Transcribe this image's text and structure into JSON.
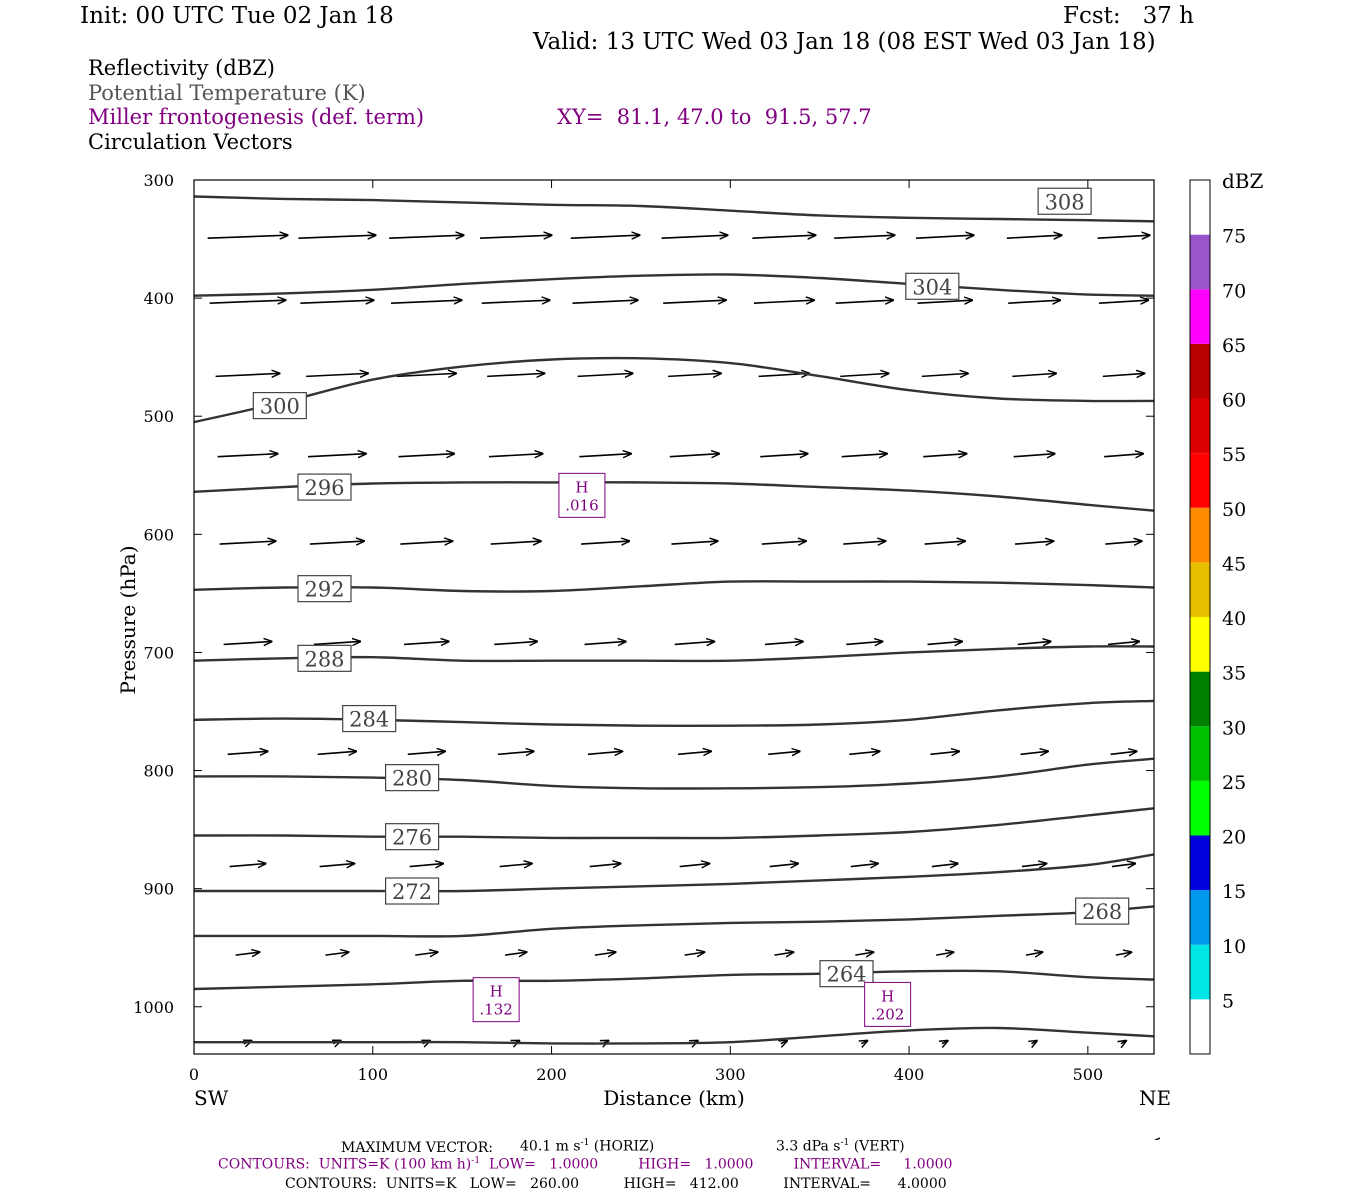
{
  "header": {
    "init": "Init: 00 UTC Tue 02 Jan 18",
    "fcst": "Fcst:   37 h",
    "valid": "Valid: 13 UTC Wed 03 Jan 18 (08 EST Wed 03 Jan 18)"
  },
  "fields": {
    "reflectivity": "Reflectivity (dBZ)",
    "theta": "Potential Temperature (K)",
    "frontogenesis": "Miller frontogenesis (def. term)",
    "xy": "XY=  81.1, 47.0 to  91.5, 57.7",
    "vectors": "Circulation Vectors"
  },
  "colors": {
    "frame": "#000000",
    "contour": "#333333",
    "frontogenesis": "#800080"
  },
  "chart_data": {
    "type": "line",
    "xlabel": "Distance (km)",
    "ylabel": "Pressure (hPa)",
    "xlim": [
      0,
      537
    ],
    "ylim": [
      1040,
      300
    ],
    "y_scale": "linear-pressure",
    "x_ticks": [
      "0",
      "100",
      "200",
      "300",
      "400",
      "500"
    ],
    "x_tick_values": [
      0,
      100,
      200,
      300,
      400,
      500
    ],
    "y_ticks": [
      "300",
      "400",
      "500",
      "600",
      "700",
      "800",
      "900",
      "1000"
    ],
    "y_tick_values": [
      300,
      400,
      500,
      600,
      700,
      800,
      900,
      1000
    ],
    "left_end_label": "SW",
    "right_end_label": "NE",
    "x": [
      0,
      50,
      100,
      150,
      200,
      250,
      300,
      350,
      400,
      450,
      500,
      537
    ],
    "isentropes": [
      {
        "label": "308",
        "values": [
          314,
          316,
          317,
          319,
          321,
          322,
          326,
          330,
          332,
          333,
          334,
          335
        ],
        "label_at": [
          487,
          318
        ]
      },
      {
        "label": "304",
        "values": [
          398,
          396,
          393,
          388,
          384,
          381,
          380,
          383,
          388,
          393,
          397,
          398
        ],
        "label_at": [
          413,
          390
        ]
      },
      {
        "label": "300",
        "values": [
          505,
          488,
          469,
          458,
          452,
          451,
          455,
          466,
          478,
          485,
          487,
          487
        ],
        "label_at": [
          48,
          491
        ]
      },
      {
        "label": "296",
        "values": [
          564,
          560,
          557,
          556,
          556,
          556,
          557,
          560,
          563,
          568,
          575,
          580
        ],
        "label_at": [
          73,
          560
        ]
      },
      {
        "label": "292",
        "values": [
          647,
          645,
          645,
          648,
          648,
          644,
          640,
          640,
          640,
          641,
          643,
          645
        ],
        "label_at": [
          73,
          646
        ]
      },
      {
        "label": "288",
        "values": [
          707,
          705,
          704,
          707,
          707,
          707,
          707,
          704,
          700,
          697,
          695,
          695
        ],
        "label_at": [
          73,
          705
        ]
      },
      {
        "label": "284",
        "values": [
          757,
          756,
          757,
          759,
          761,
          762,
          762,
          761,
          757,
          749,
          743,
          741
        ],
        "label_at": [
          98,
          756
        ]
      },
      {
        "label": "280",
        "values": [
          805,
          805,
          806,
          808,
          813,
          815,
          815,
          814,
          811,
          805,
          795,
          790
        ],
        "label_at": [
          122,
          806
        ]
      },
      {
        "label": "276",
        "values": [
          855,
          855,
          856,
          856,
          857,
          857,
          857,
          855,
          852,
          846,
          838,
          832
        ],
        "label_at": [
          122,
          856
        ]
      },
      {
        "label": "272",
        "values": [
          902,
          902,
          902,
          902,
          900,
          898,
          896,
          893,
          890,
          886,
          880,
          871
        ],
        "label_at": [
          122,
          902
        ]
      },
      {
        "label": "268",
        "values": [
          940,
          940,
          940,
          940,
          934,
          931,
          929,
          928,
          926,
          923,
          920,
          915
        ],
        "label_at": [
          508,
          919
        ]
      },
      {
        "label": "264",
        "values": [
          985,
          983,
          981,
          978,
          978,
          976,
          973,
          972,
          970,
          970,
          975,
          977
        ],
        "label_at": [
          365,
          972
        ]
      },
      {
        "label": "",
        "values": [
          1030,
          1030,
          1030,
          1030,
          1031,
          1031,
          1030,
          1025,
          1020,
          1018,
          1022,
          1025
        ]
      }
    ],
    "frontogenesis_highs": [
      {
        "label": "H",
        "value": ".016",
        "x": 217,
        "p": 567
      },
      {
        "label": "H",
        "value": ".132",
        "x": 169,
        "p": 994
      },
      {
        "label": "H",
        "value": ".202",
        "x": 388,
        "p": 998
      }
    ],
    "circulation_vectors": {
      "levels": [
        348,
        403,
        465,
        533,
        607,
        692,
        785,
        880,
        955,
        1030
      ],
      "x": [
        30,
        80,
        130,
        180,
        230,
        280,
        330,
        375,
        420,
        470,
        520
      ],
      "u_scale": [
        1.0,
        0.95,
        0.8,
        0.75,
        0.7,
        0.6,
        0.5,
        0.45,
        0.3,
        0.1
      ]
    },
    "colorbar": {
      "unit": "dBZ",
      "bounds": [
        "5",
        "10",
        "15",
        "20",
        "25",
        "30",
        "35",
        "40",
        "45",
        "50",
        "55",
        "60",
        "65",
        "70",
        "75"
      ],
      "colors": [
        "#ffffff",
        "#00e5e5",
        "#0099ee",
        "#0000dd",
        "#00ff00",
        "#00c000",
        "#008000",
        "#ffff00",
        "#e8c000",
        "#ff8c00",
        "#ff0000",
        "#dd0000",
        "#bb0000",
        "#ff00ff",
        "#9955cc",
        "#ffffff"
      ]
    }
  },
  "footer": {
    "max_vector_label": "MAXIMUM VECTOR:",
    "max_vector_horiz": "40.1 m s",
    "horiz_tag": "(HORIZ)",
    "max_vector_vert": "3.3 dPa s",
    "vert_tag": "(VERT)",
    "superscript": "-1",
    "contours1_a": "CONTOURS:  UNITS=K (100 km h)",
    "contours1_b": "LOW=   1.0000         HIGH=   1.0000         INTERVAL=     1.0000",
    "contours2": "CONTOURS:  UNITS=K   LOW=   260.00          HIGH=   412.00          INTERVAL=      4.0000"
  }
}
